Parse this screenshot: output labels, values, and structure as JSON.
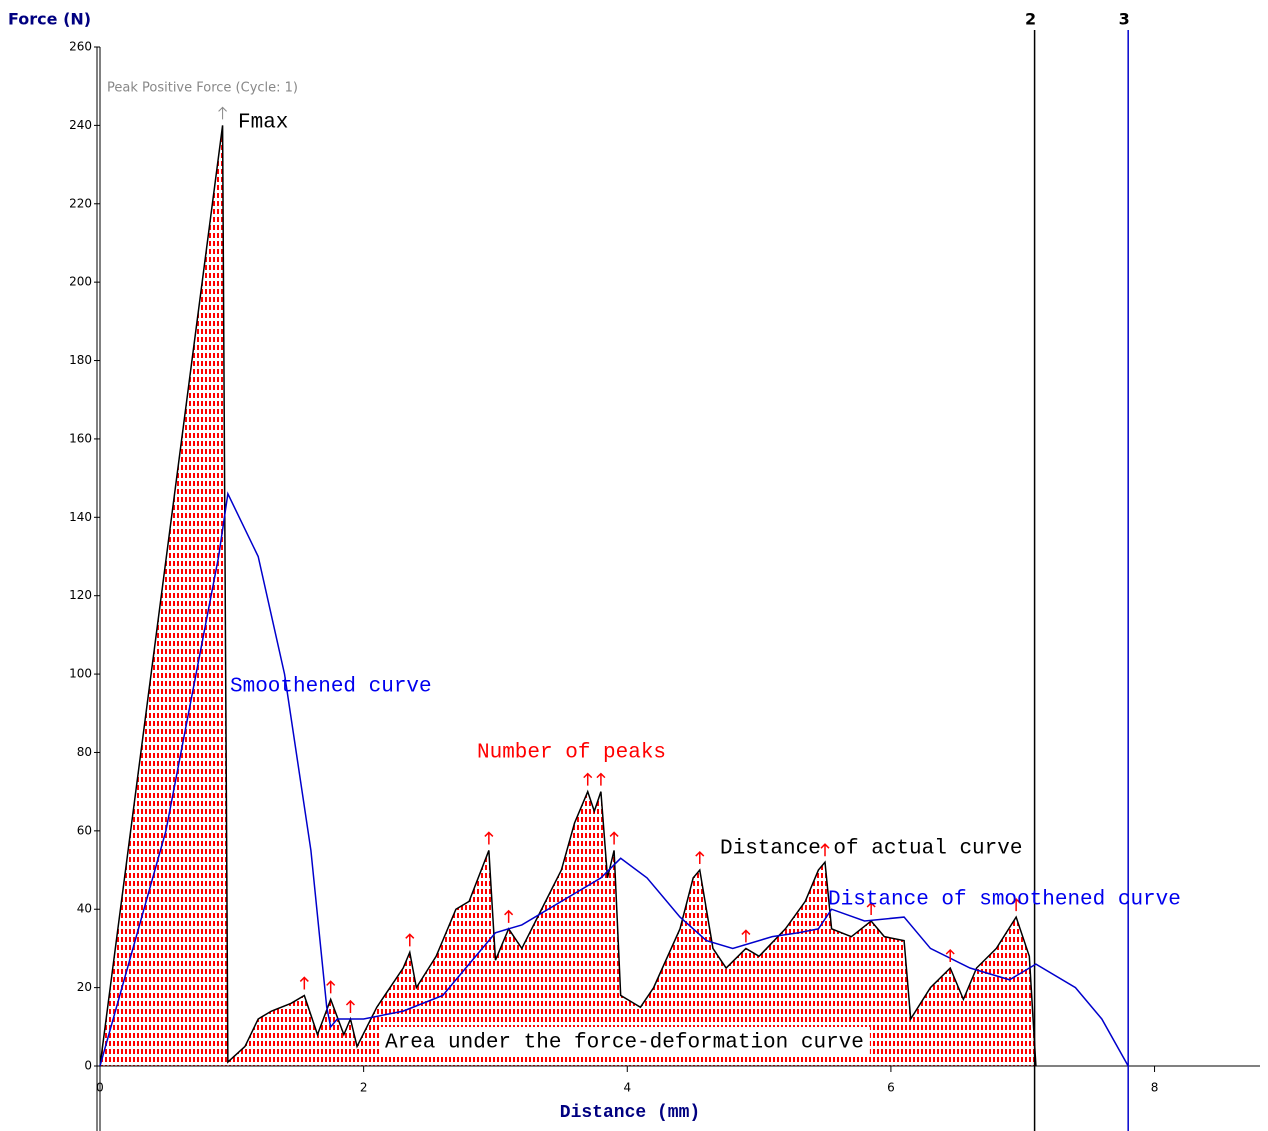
{
  "chart_data": {
    "type": "line",
    "title": "Force (N)",
    "x_label": "Distance (mm)",
    "xlim": [
      0,
      8.8
    ],
    "ylim": [
      0,
      260
    ],
    "xticks": [
      0,
      2,
      4,
      6,
      8
    ],
    "yticks": [
      0,
      20,
      40,
      60,
      80,
      100,
      120,
      140,
      160,
      180,
      200,
      220,
      240,
      260
    ],
    "series": [
      {
        "color": "#000000",
        "x": [
          0,
          0.93,
          0.97,
          1.1,
          1.2,
          1.3,
          1.45,
          1.55,
          1.65,
          1.75,
          1.85,
          1.9,
          1.95,
          2.1,
          2.3,
          2.35,
          2.4,
          2.55,
          2.7,
          2.8,
          2.95,
          3.0,
          3.1,
          3.2,
          3.35,
          3.5,
          3.6,
          3.7,
          3.75,
          3.8,
          3.85,
          3.9,
          3.95,
          4.1,
          4.2,
          4.4,
          4.5,
          4.55,
          4.65,
          4.75,
          4.9,
          5.0,
          5.2,
          5.35,
          5.45,
          5.5,
          5.55,
          5.7,
          5.85,
          5.95,
          6.1,
          6.15,
          6.3,
          6.45,
          6.55,
          6.65,
          6.8,
          6.95,
          7.05,
          7.1
        ],
        "values": [
          0,
          240,
          1,
          5,
          12,
          14,
          16,
          18,
          8,
          17,
          8,
          12,
          5,
          15,
          25,
          29,
          20,
          28,
          40,
          42,
          55,
          27,
          35,
          30,
          40,
          50,
          62,
          70,
          65,
          70,
          48,
          55,
          18,
          15,
          20,
          35,
          48,
          50,
          30,
          25,
          30,
          28,
          35,
          42,
          50,
          52,
          35,
          33,
          37,
          33,
          32,
          12,
          20,
          25,
          17,
          25,
          30,
          38,
          28,
          0
        ]
      },
      {
        "color": "#0000cc",
        "x": [
          0,
          0.5,
          0.9,
          0.97,
          1.2,
          1.4,
          1.6,
          1.72,
          1.75,
          1.8,
          2.0,
          2.3,
          2.6,
          2.85,
          3.0,
          3.2,
          3.5,
          3.8,
          3.95,
          4.15,
          4.4,
          4.6,
          4.8,
          5.1,
          5.3,
          5.45,
          5.55,
          5.8,
          6.1,
          6.3,
          6.6,
          6.9,
          7.1,
          7.4,
          7.6,
          7.8
        ],
        "values": [
          0,
          60,
          130,
          146,
          130,
          100,
          55,
          15,
          10,
          12,
          12,
          14,
          18,
          28,
          34,
          36,
          42,
          48,
          53,
          48,
          38,
          32,
          30,
          33,
          34,
          35,
          40,
          37,
          38,
          30,
          25,
          22,
          26,
          20,
          12,
          0
        ]
      }
    ],
    "markers": [
      {
        "label": "2",
        "x": 7.09,
        "color": "#000000"
      },
      {
        "label": "3",
        "x": 7.8,
        "color": "#0000cc"
      }
    ],
    "annotations": [
      {
        "text": "Peak Positive Force (Cycle: 1)",
        "color": "#888888"
      },
      {
        "text": "Fmax",
        "color": "#000000"
      },
      {
        "text": "Smoothened curve",
        "color": "#0000ee"
      },
      {
        "text": "Number of peaks",
        "color": "#ff0000"
      },
      {
        "text": "Distance of actual curve",
        "color": "#000000"
      },
      {
        "text": "Distance of smoothened curve",
        "color": "#0000ee"
      },
      {
        "text": "Area under the force-deformation curve",
        "color": "#000000"
      }
    ],
    "area_color": "#ff0000"
  }
}
